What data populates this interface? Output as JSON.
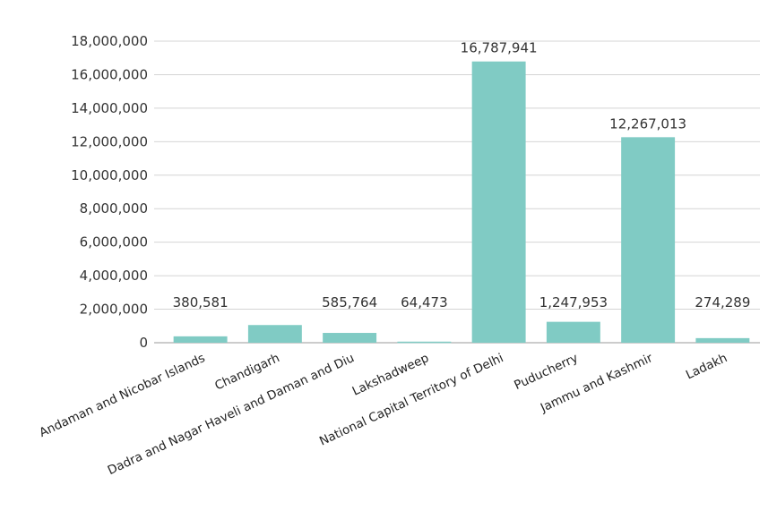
{
  "chart_data": {
    "type": "bar",
    "title": "",
    "xlabel": "",
    "ylabel": "",
    "categories": [
      "Andaman and Nicobar Islands",
      "Chandigarh",
      "Dadra and Nagar Haveli and Daman and Diu",
      "Lakshadweep",
      "National Capital Territory of Delhi",
      "Puducherry",
      "Jammu and Kashmir",
      "Ladakh"
    ],
    "values": [
      380581,
      1055450,
      585764,
      64473,
      16787941,
      1247953,
      12267013,
      274289
    ],
    "data_labels": [
      "380,581",
      "",
      "585,764",
      "64,473",
      "16,787,941",
      "1,247,953",
      "12,267,013",
      "274,289"
    ],
    "ylim": [
      0,
      18000000
    ],
    "yticks": [
      0,
      2000000,
      4000000,
      6000000,
      8000000,
      10000000,
      12000000,
      14000000,
      16000000,
      18000000
    ],
    "ytick_labels": [
      "0",
      "2,000,000",
      "4,000,000",
      "6,000,000",
      "8,000,000",
      "10,000,000",
      "12,000,000",
      "14,000,000",
      "16,000,000",
      "18,000,000"
    ],
    "grid": true,
    "legend": "none",
    "bar_color": "#80CBC4"
  }
}
